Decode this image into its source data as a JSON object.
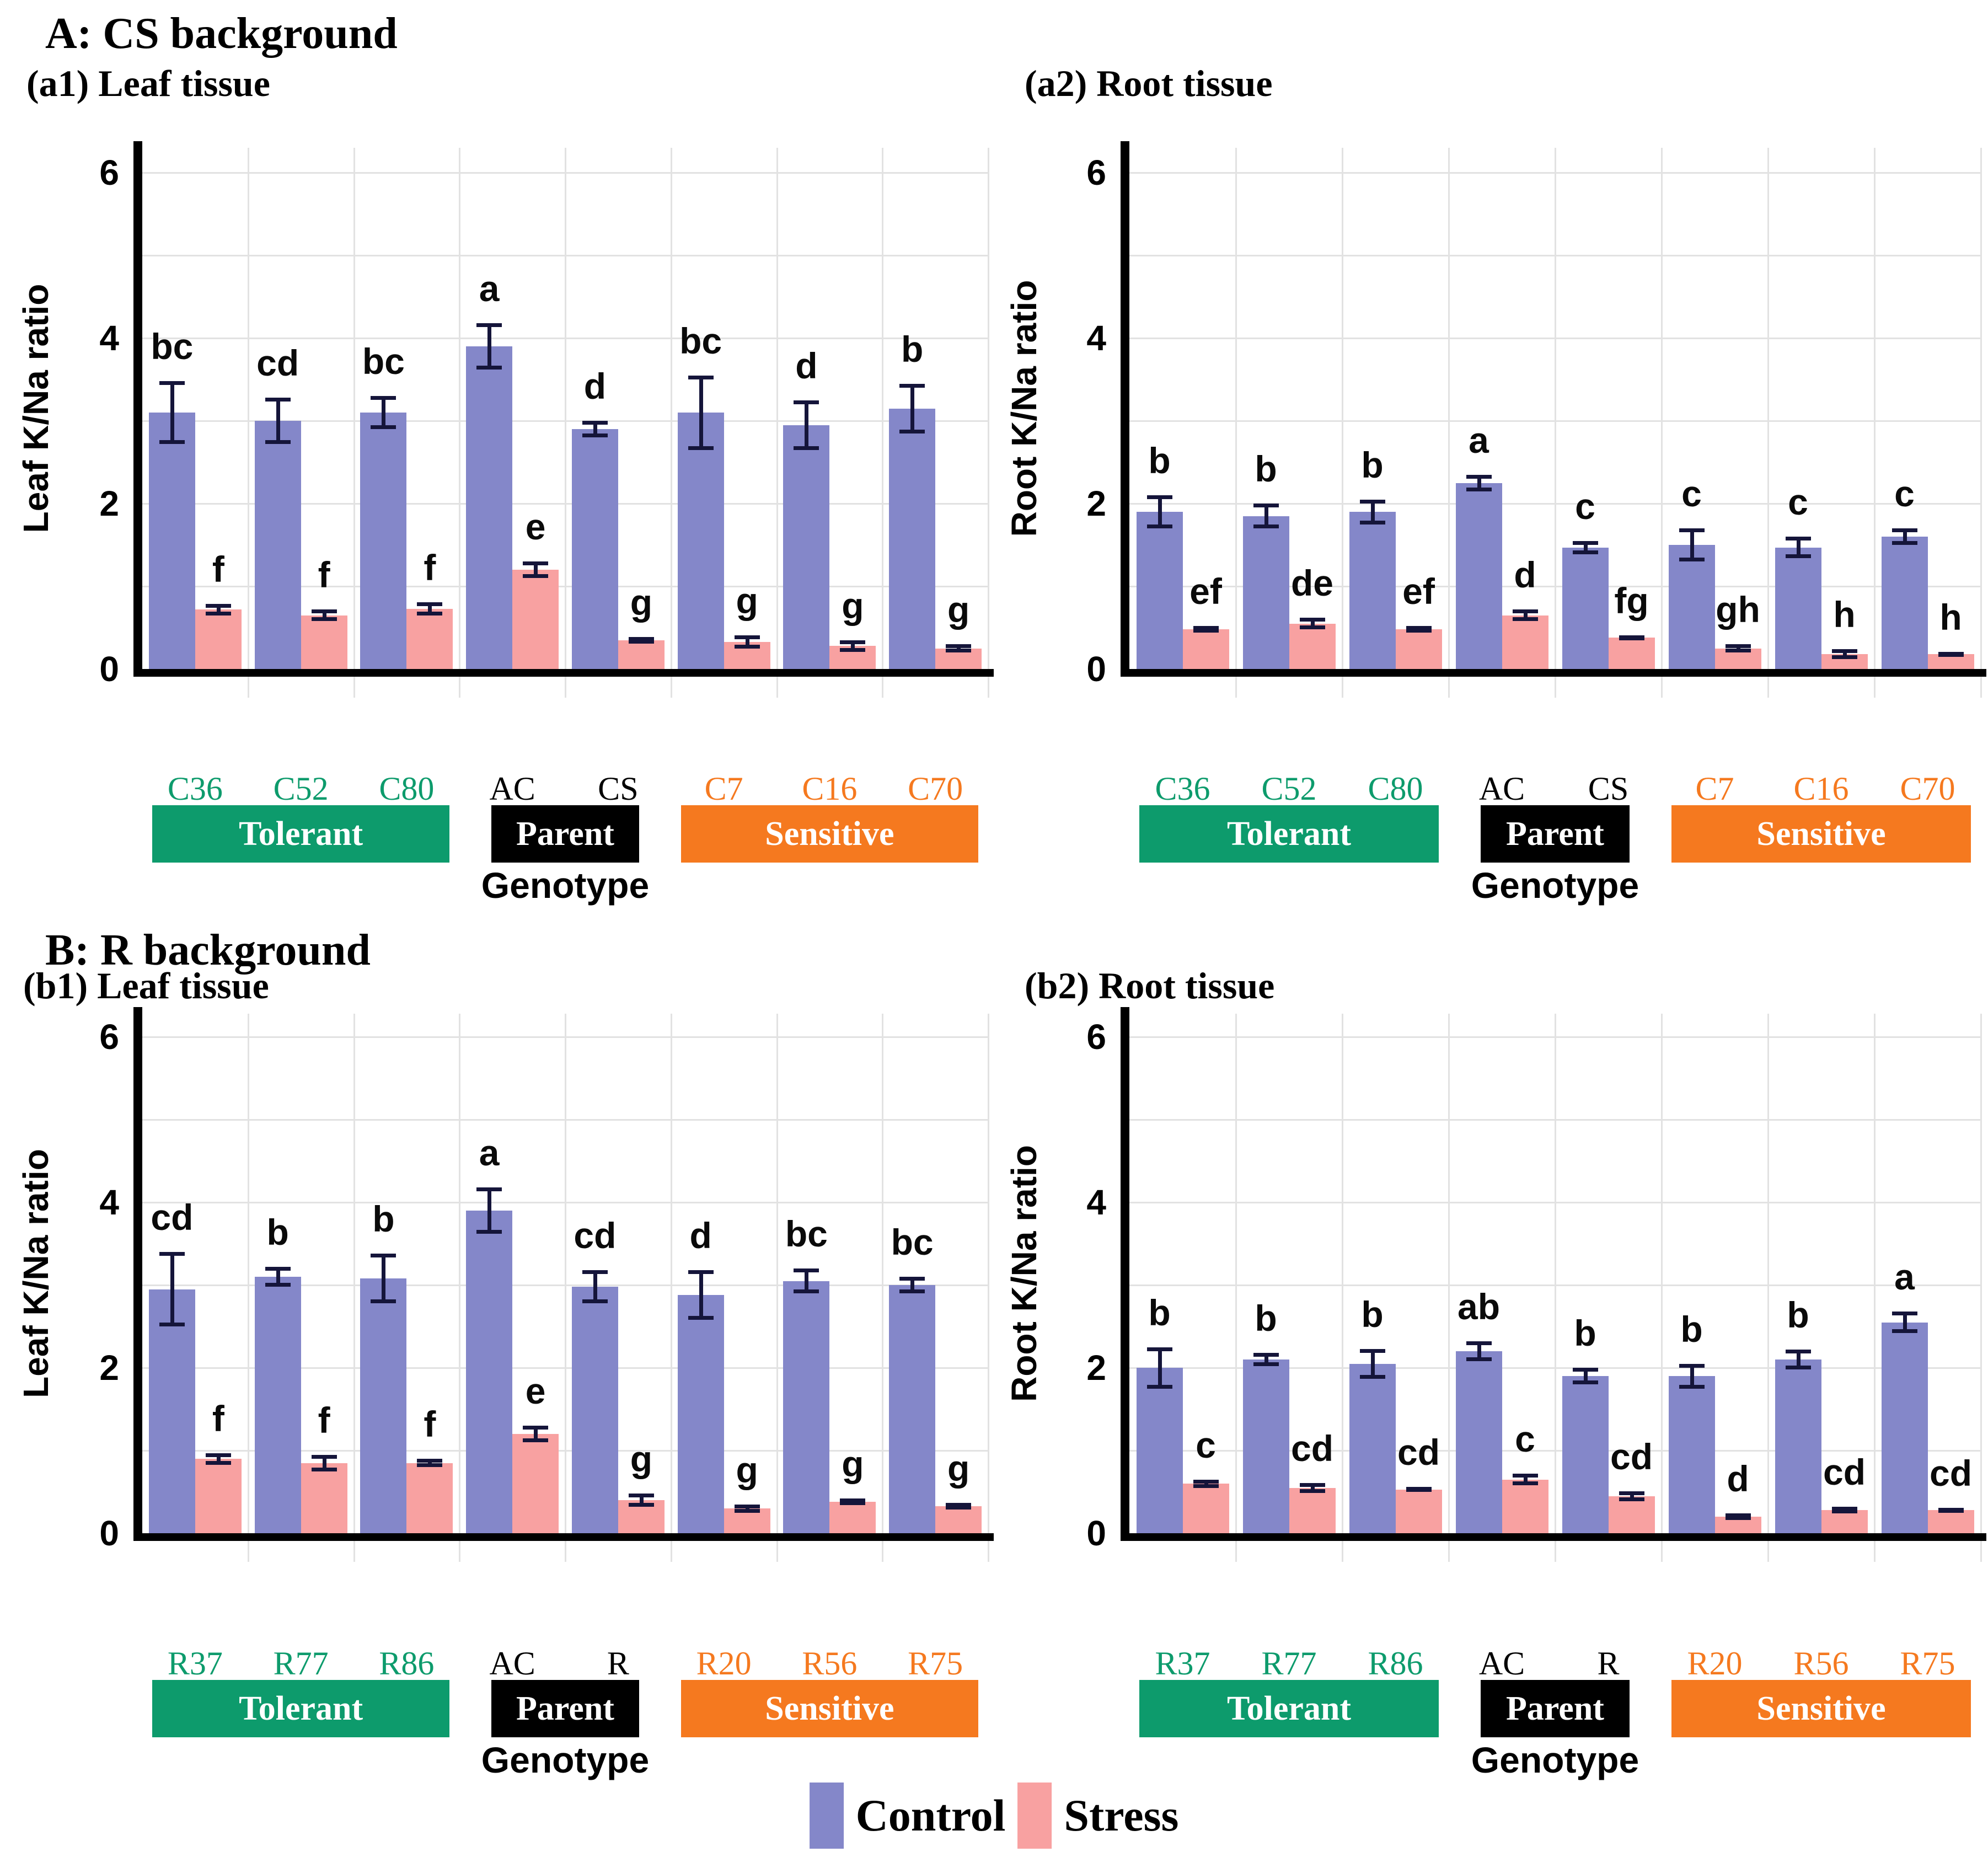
{
  "figure": {
    "section_a": {
      "title": "A: CS background"
    },
    "section_b": {
      "title": "B: R background"
    },
    "axis_label_genotype": "Genotype",
    "legend": {
      "items": [
        {
          "label": "Control",
          "color": "#8487C9"
        },
        {
          "label": "Stress",
          "color": "#F8A1A1"
        }
      ]
    },
    "colors": {
      "control": "#8487C9",
      "stress": "#F8A1A1",
      "error_bar": "#15153a",
      "tolerant": "#0D9B6C",
      "parent": "#000000",
      "sensitive": "#F5791F",
      "gridline": "#e2e2e2"
    }
  },
  "chart_data": [
    {
      "id": "a1",
      "type": "bar",
      "subtitle": "(a1) Leaf tissue",
      "ylabel": "Leaf K/Na ratio",
      "ylim": [
        0,
        6.3
      ],
      "yticks": [
        0,
        2,
        4,
        6
      ],
      "grid": "on",
      "categories": [
        "C36",
        "C52",
        "C80",
        "AC",
        "CS",
        "C7",
        "C16",
        "C70"
      ],
      "category_color_keys": [
        "tolerant",
        "tolerant",
        "tolerant",
        "parent",
        "parent",
        "sensitive",
        "sensitive",
        "sensitive"
      ],
      "group_bands": [
        {
          "label": "Tolerant",
          "from": 0,
          "to": 2,
          "color_key": "tolerant"
        },
        {
          "label": "Parent",
          "from": 3,
          "to": 4,
          "color_key": "parent"
        },
        {
          "label": "Sensitive",
          "from": 5,
          "to": 7,
          "color_key": "sensitive"
        }
      ],
      "series": [
        {
          "name": "Control",
          "values": [
            3.1,
            3.0,
            3.1,
            3.9,
            2.9,
            3.1,
            2.95,
            3.15
          ],
          "errors": [
            0.38,
            0.28,
            0.2,
            0.28,
            0.1,
            0.45,
            0.3,
            0.3
          ],
          "letters": [
            "bc",
            "cd",
            "bc",
            "a",
            "d",
            "bc",
            "d",
            "b"
          ]
        },
        {
          "name": "Stress",
          "values": [
            0.72,
            0.65,
            0.73,
            1.2,
            0.35,
            0.33,
            0.28,
            0.25
          ],
          "errors": [
            0.07,
            0.07,
            0.08,
            0.1,
            0.04,
            0.08,
            0.07,
            0.05
          ],
          "letters": [
            "f",
            "f",
            "f",
            "e",
            "g",
            "g",
            "g",
            "g"
          ]
        }
      ]
    },
    {
      "id": "a2",
      "type": "bar",
      "subtitle": "(a2) Root tissue",
      "ylabel": "Root K/Na ratio",
      "ylim": [
        0,
        6.3
      ],
      "yticks": [
        0,
        2,
        4,
        6
      ],
      "grid": "on",
      "categories": [
        "C36",
        "C52",
        "C80",
        "AC",
        "CS",
        "C7",
        "C16",
        "C70"
      ],
      "category_color_keys": [
        "tolerant",
        "tolerant",
        "tolerant",
        "parent",
        "parent",
        "sensitive",
        "sensitive",
        "sensitive"
      ],
      "group_bands": [
        {
          "label": "Tolerant",
          "from": 0,
          "to": 2,
          "color_key": "tolerant"
        },
        {
          "label": "Parent",
          "from": 3,
          "to": 4,
          "color_key": "parent"
        },
        {
          "label": "Sensitive",
          "from": 5,
          "to": 7,
          "color_key": "sensitive"
        }
      ],
      "series": [
        {
          "name": "Control",
          "values": [
            1.9,
            1.85,
            1.9,
            2.25,
            1.47,
            1.5,
            1.47,
            1.6
          ],
          "errors": [
            0.2,
            0.15,
            0.15,
            0.1,
            0.08,
            0.2,
            0.13,
            0.1
          ],
          "letters": [
            "b",
            "b",
            "b",
            "a",
            "c",
            "c",
            "c",
            "c"
          ]
        },
        {
          "name": "Stress",
          "values": [
            0.48,
            0.55,
            0.48,
            0.65,
            0.38,
            0.25,
            0.18,
            0.18
          ],
          "errors": [
            0.04,
            0.07,
            0.04,
            0.07,
            0.03,
            0.05,
            0.06,
            0.03
          ],
          "letters": [
            "ef",
            "de",
            "ef",
            "d",
            "fg",
            "gh",
            "h",
            "h"
          ]
        }
      ]
    },
    {
      "id": "b1",
      "type": "bar",
      "subtitle": "(b1) Leaf tissue",
      "ylabel": "Leaf K/Na ratio",
      "ylim": [
        0,
        6.3
      ],
      "yticks": [
        0,
        2,
        4,
        6
      ],
      "grid": "on",
      "categories": [
        "R37",
        "R77",
        "R86",
        "AC",
        "R",
        "R20",
        "R56",
        "R75"
      ],
      "category_color_keys": [
        "tolerant",
        "tolerant",
        "tolerant",
        "parent",
        "parent",
        "sensitive",
        "sensitive",
        "sensitive"
      ],
      "group_bands": [
        {
          "label": "Tolerant",
          "from": 0,
          "to": 2,
          "color_key": "tolerant"
        },
        {
          "label": "Parent",
          "from": 3,
          "to": 4,
          "color_key": "parent"
        },
        {
          "label": "Sensitive",
          "from": 5,
          "to": 7,
          "color_key": "sensitive"
        }
      ],
      "series": [
        {
          "name": "Control",
          "values": [
            2.95,
            3.1,
            3.08,
            3.9,
            2.98,
            2.88,
            3.05,
            3.0
          ],
          "errors": [
            0.45,
            0.12,
            0.3,
            0.28,
            0.2,
            0.3,
            0.15,
            0.1
          ],
          "letters": [
            "cd",
            "b",
            "b",
            "a",
            "cd",
            "d",
            "bc",
            "bc"
          ]
        },
        {
          "name": "Stress",
          "values": [
            0.9,
            0.85,
            0.85,
            1.2,
            0.4,
            0.3,
            0.38,
            0.33
          ],
          "errors": [
            0.07,
            0.1,
            0.05,
            0.1,
            0.08,
            0.05,
            0.04,
            0.04
          ],
          "letters": [
            "f",
            "f",
            "f",
            "e",
            "g",
            "g",
            "g",
            "g"
          ]
        }
      ]
    },
    {
      "id": "b2",
      "type": "bar",
      "subtitle": "(b2) Root tissue",
      "ylabel": "Root K/Na ratio",
      "ylim": [
        0,
        6.3
      ],
      "yticks": [
        0,
        2,
        4,
        6
      ],
      "grid": "on",
      "categories": [
        "R37",
        "R77",
        "R86",
        "AC",
        "R",
        "R20",
        "R56",
        "R75"
      ],
      "category_color_keys": [
        "tolerant",
        "tolerant",
        "tolerant",
        "parent",
        "parent",
        "sensitive",
        "sensitive",
        "sensitive"
      ],
      "group_bands": [
        {
          "label": "Tolerant",
          "from": 0,
          "to": 2,
          "color_key": "tolerant"
        },
        {
          "label": "Parent",
          "from": 3,
          "to": 4,
          "color_key": "parent"
        },
        {
          "label": "Sensitive",
          "from": 5,
          "to": 7,
          "color_key": "sensitive"
        }
      ],
      "series": [
        {
          "name": "Control",
          "values": [
            2.0,
            2.1,
            2.05,
            2.2,
            1.9,
            1.9,
            2.1,
            2.55
          ],
          "errors": [
            0.25,
            0.08,
            0.18,
            0.12,
            0.1,
            0.15,
            0.12,
            0.13
          ],
          "letters": [
            "b",
            "b",
            "b",
            "ab",
            "b",
            "b",
            "b",
            "a"
          ]
        },
        {
          "name": "Stress",
          "values": [
            0.6,
            0.55,
            0.53,
            0.65,
            0.45,
            0.2,
            0.28,
            0.28
          ],
          "errors": [
            0.05,
            0.06,
            0.03,
            0.07,
            0.06,
            0.04,
            0.04,
            0.03
          ],
          "letters": [
            "c",
            "cd",
            "cd",
            "c",
            "cd",
            "d",
            "cd",
            "cd"
          ]
        }
      ]
    }
  ]
}
